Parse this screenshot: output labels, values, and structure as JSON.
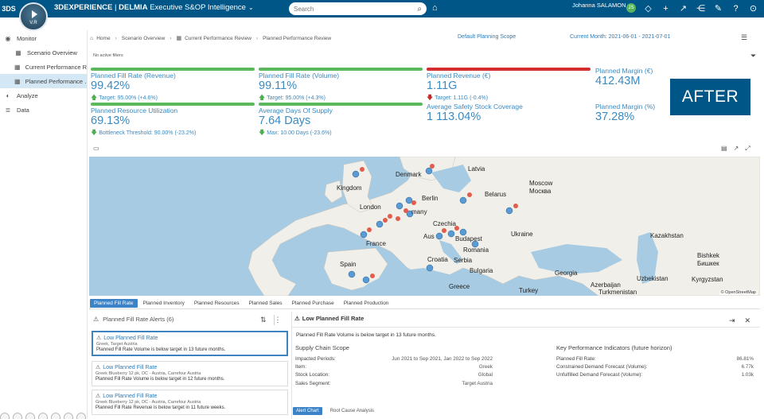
{
  "topbar": {
    "logo": "3DS",
    "compass_version": "V.R",
    "brand_bold": "3DEXPERIENCE",
    "brand_sep": " | ",
    "brand_app": "DELMIA",
    "brand_product": "Executive S&OP Intelligence",
    "search_placeholder": "Search",
    "user_name": "Johanna SALAMON",
    "avatar_initial": "JS"
  },
  "sidebar": {
    "items": [
      {
        "label": "Monitor",
        "icon": "monitor-icon",
        "level": 0
      },
      {
        "label": "Scenario Overview",
        "icon": "grid-icon",
        "level": 1
      },
      {
        "label": "Current Performance R...",
        "icon": "grid-icon",
        "level": 1
      },
      {
        "label": "Planned Performance ...",
        "icon": "grid-icon",
        "level": 1,
        "active": true
      },
      {
        "label": "Analyze",
        "icon": "chart-icon",
        "level": 0
      },
      {
        "label": "Data",
        "icon": "database-icon",
        "level": 0
      }
    ]
  },
  "breadcrumb": {
    "home": "Home",
    "b1": "Scenario Overview",
    "b2": "Current Performance Review",
    "b3": "Planned Performance Review"
  },
  "header": {
    "planning_scope": "Default Planning Scope",
    "current_month": "Current Month: 2021-06-01 - 2021-07-01",
    "filters": "No active filters"
  },
  "kpis": [
    {
      "title": "Planned Fill Rate (Revenue)",
      "value": "99.42%",
      "sub": "Target: 95.00% (+4.6%)",
      "trend": "up",
      "bar": "#5cb85c"
    },
    {
      "title": "Planned Fill Rate (Volume)",
      "value": "99.11%",
      "sub": "Target: 95.00% (+4.3%)",
      "trend": "up",
      "bar": "#5cb85c"
    },
    {
      "title": "Planned Revenue (€)",
      "value": "1.11G",
      "sub": "Target: 1.11G (-0.4%)",
      "trend": "down-red",
      "bar": "#d32f2f"
    },
    {
      "title": "Planned Margin (€)",
      "value": "412.43M",
      "sub": "",
      "trend": "",
      "bar": ""
    },
    {
      "title": "Planned Resource Utilization",
      "value": "69.13%",
      "sub": "Bottleneck Threshold: 90.00% (-23.2%)",
      "trend": "down-green",
      "bar": "#5cb85c"
    },
    {
      "title": "Average Days Of Supply",
      "value": "7.64 Days",
      "sub": "Max: 10.00 Days (-23.6%)",
      "trend": "down-green",
      "bar": "#5cb85c"
    },
    {
      "title": "Average Safety Stock Coverage",
      "value": "1 113.04%",
      "sub": "",
      "trend": "",
      "bar": ""
    },
    {
      "title": "Planned Margin (%)",
      "value": "37.28%",
      "sub": "",
      "trend": "",
      "bar": ""
    }
  ],
  "after_label": "AFTER",
  "map": {
    "labels": [
      {
        "text": "Latvia"
      },
      {
        "text": "Moscow"
      },
      {
        "text": "Москва"
      },
      {
        "text": "Belarus"
      },
      {
        "text": "Berlin"
      },
      {
        "text": "London"
      },
      {
        "text": "Kingdom"
      },
      {
        "text": "Czechia"
      },
      {
        "text": "Ukraine"
      },
      {
        "text": "Kazakhstan"
      },
      {
        "text": "France"
      },
      {
        "text": "Budapest"
      },
      {
        "text": "Romania"
      },
      {
        "text": "Croatia"
      },
      {
        "text": "Serbia"
      },
      {
        "text": "Bulgaria"
      },
      {
        "text": "Georgia"
      },
      {
        "text": "Uzbekistan"
      },
      {
        "text": "Kyrgyzstan"
      },
      {
        "text": "Turkey"
      },
      {
        "text": "Turkmenistan"
      },
      {
        "text": "Bishkek"
      },
      {
        "text": "Бишкек"
      },
      {
        "text": "Azerbaijan"
      },
      {
        "text": "Greece"
      },
      {
        "text": "Spain"
      },
      {
        "text": "Denmark"
      },
      {
        "text": "many"
      },
      {
        "text": "Aus"
      }
    ],
    "attribution": "© OpenStreetMap"
  },
  "tabs": [
    "Planned Fill Rate",
    "Planned Inventory",
    "Planned Resources",
    "Planned Sales",
    "Planned Purchase",
    "Planned Production"
  ],
  "alerts": {
    "header": "Planned Fill Rate Alerts (6)",
    "items": [
      {
        "title": "Low Planned Fill Rate",
        "sub": "Greek, Target Austria",
        "desc": "Planned Fill Rate Volume is below target in 13 future months."
      },
      {
        "title": "Low Planned Fill Rate",
        "sub": "Greek Blueberry 12 pk, DC - Austria, Carrefour Austria",
        "desc": "Planned Fill Rate Volume is below target in 12 future months."
      },
      {
        "title": "Low Planned Fill Rate",
        "sub": "Greek Blueberry 12 pk, DC - Austria, Carrefour Austria",
        "desc": "Planned Fill Rate Revenue is below target in 11 future weeks."
      }
    ]
  },
  "detail": {
    "title": "Low Planned Fill Rate",
    "message": "Planned Fill Rate Volume is below target in 13 future months.",
    "scope_title": "Supply Chain Scope",
    "scope": [
      {
        "k": "Impacted Periods:",
        "v": "Jun 2021 to Sep 2021, Jan 2022 to Sep 2022"
      },
      {
        "k": "Item:",
        "v": "Greek"
      },
      {
        "k": "Stock Location:",
        "v": "Global"
      },
      {
        "k": "Sales Segment:",
        "v": "Target Austria"
      }
    ],
    "kpi_title": "Key Performance Indicators (future horizon)",
    "kpis": [
      {
        "k": "Planned Fill Rate:",
        "v": "86.81%"
      },
      {
        "k": "Constrained Demand Forecast (Volume):",
        "v": "6.77k"
      },
      {
        "k": "Unfulfilled Demand Forecast (Volume):",
        "v": "1.03k"
      }
    ],
    "tabs": [
      "Alert Chart",
      "Root Cause Analysis"
    ]
  },
  "colors": {
    "accent": "#005686",
    "kpi_text": "#3b8ac1",
    "good": "#5cb85c",
    "bad": "#d32f2f",
    "map_water": "#a7cbe3",
    "map_land": "#f1efe9"
  }
}
